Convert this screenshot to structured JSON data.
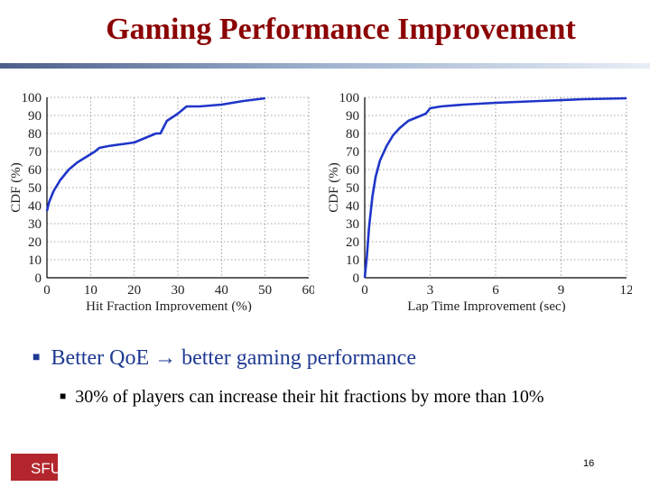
{
  "slide": {
    "title": "Gaming Performance Improvement",
    "bullet_main_a": "Better QoE",
    "bullet_main_b": "better gaming performance",
    "bullet_sub": "30% of players can increase their hit fractions by more than 10%",
    "logo_text": "SFU",
    "page_number": "16"
  },
  "chart_data": [
    {
      "type": "line",
      "xlabel": "Hit Fraction Improvement (%)",
      "ylabel": "CDF (%)",
      "xlim": [
        0,
        60
      ],
      "ylim": [
        0,
        100
      ],
      "xticks": [
        "0",
        "10",
        "20",
        "30",
        "40",
        "50",
        "60"
      ],
      "yticks": [
        "0",
        "10",
        "20",
        "30",
        "40",
        "50",
        "60",
        "70",
        "80",
        "90",
        "100"
      ],
      "grid": true,
      "color": "#1f35c9",
      "series": [
        {
          "x": [
            0,
            0.5,
            1.5,
            3,
            5,
            7,
            9,
            11,
            12,
            14,
            17,
            20,
            22,
            24,
            25,
            26,
            27.5,
            30,
            32,
            35,
            40,
            45,
            50
          ],
          "y": [
            37,
            42,
            48,
            54,
            60,
            64,
            67,
            70,
            72,
            73,
            74,
            75,
            77,
            79,
            80,
            80,
            87,
            91,
            95,
            95,
            96,
            98,
            99.5
          ]
        }
      ]
    },
    {
      "type": "line",
      "xlabel": "Lap Time Improvement (sec)",
      "ylabel": "CDF (%)",
      "xlim": [
        0,
        12
      ],
      "ylim": [
        0,
        100
      ],
      "xticks": [
        "0",
        "3",
        "6",
        "9",
        "12"
      ],
      "yticks": [
        "0",
        "10",
        "20",
        "30",
        "40",
        "50",
        "60",
        "70",
        "80",
        "90",
        "100"
      ],
      "grid": true,
      "color": "#1f35c9",
      "series": [
        {
          "x": [
            0,
            0.1,
            0.2,
            0.35,
            0.5,
            0.7,
            1,
            1.3,
            1.6,
            2,
            2.4,
            2.8,
            3,
            3.5,
            4.5,
            6,
            8,
            10,
            12
          ],
          "y": [
            0,
            12,
            28,
            45,
            56,
            65,
            73,
            79,
            83,
            87,
            89,
            91,
            94,
            95,
            96,
            97,
            98,
            99,
            99.5
          ]
        }
      ]
    }
  ]
}
